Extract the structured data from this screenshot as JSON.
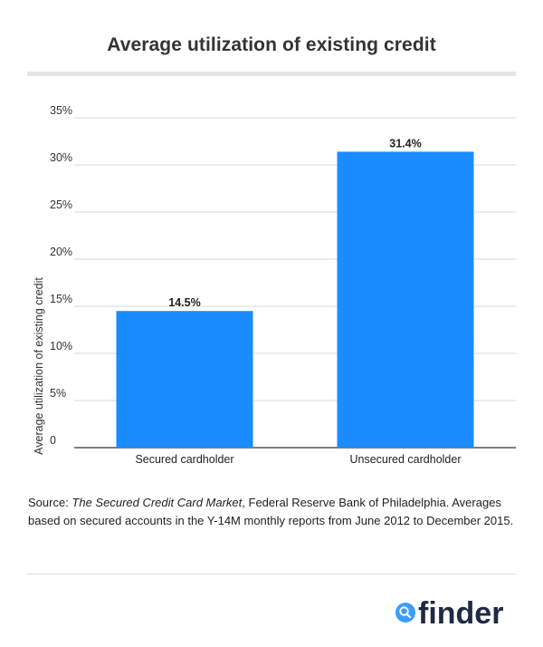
{
  "header": {
    "title": "Average utilization of existing credit"
  },
  "chart_data": {
    "type": "bar",
    "title": "Average utilization of existing credit",
    "xlabel": "",
    "ylabel": "Average utilization of existing credit",
    "categories": [
      "Secured cardholder",
      "Unsecured cardholder"
    ],
    "values": [
      14.5,
      31.4
    ],
    "data_labels": [
      "14.5%",
      "31.4%"
    ],
    "ylim": [
      0,
      35
    ],
    "yticks": [
      0,
      5,
      10,
      15,
      20,
      25,
      30,
      35
    ],
    "ytick_labels": [
      "0",
      "5%",
      "10%",
      "15%",
      "20%",
      "25%",
      "30%",
      "35%"
    ],
    "grid": true,
    "bar_color": "#1a8cff"
  },
  "footer": {
    "source_prefix": "Source: ",
    "source_title": "The Secured Credit Card Market",
    "source_rest": ", Federal Reserve Bank of Philadelphia. Averages based on secured accounts in the Y-14M monthly reports from June 2012 to December 2015."
  },
  "logo": {
    "text": "finder",
    "icon": "search-icon",
    "accent": "#3b9dff",
    "text_color": "#1f2a44"
  }
}
